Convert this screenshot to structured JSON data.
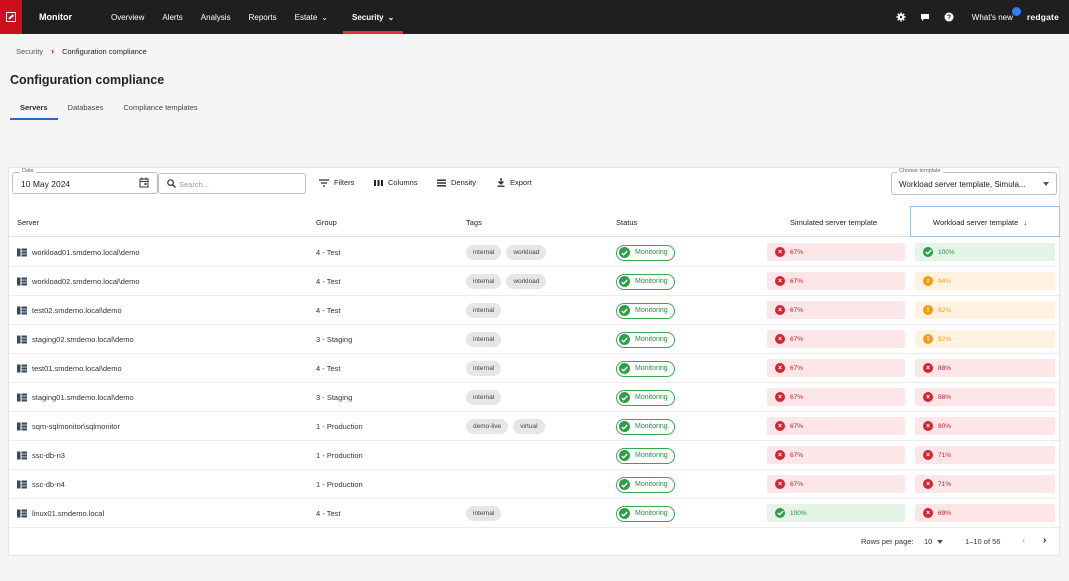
{
  "app": {
    "name": "Monitor",
    "brand": "redgate",
    "whats_new": "What's new"
  },
  "nav": [
    {
      "label": "Overview",
      "has_chevron": false
    },
    {
      "label": "Alerts",
      "has_chevron": false
    },
    {
      "label": "Analysis",
      "has_chevron": false
    },
    {
      "label": "Reports",
      "has_chevron": false
    },
    {
      "label": "Estate",
      "has_chevron": true
    },
    {
      "label": "Security",
      "has_chevron": true,
      "active": true
    }
  ],
  "top_icons": [
    "gear-icon",
    "chat-icon",
    "help-icon"
  ],
  "breadcrumb": {
    "parent": "Security",
    "current": "Configuration compliance"
  },
  "page_title": "Configuration compliance",
  "tabs": [
    "Servers",
    "Databases",
    "Compliance templates"
  ],
  "toolbar": {
    "date_label": "Date",
    "date_value": "10 May 2024",
    "search_placeholder": "Search...",
    "filters": "Filters",
    "columns": "Columns",
    "density": "Density",
    "export": "Export",
    "template_label": "Choose template",
    "template_value": "Workload server template, Simula..."
  },
  "columns": {
    "server": "Server",
    "group": "Group",
    "tags": "Tags",
    "status": "Status",
    "simulated": "Simulated server template",
    "workload": "Workload server template"
  },
  "rows": [
    {
      "server": "workload01.smdemo.local\\demo",
      "group": "4 - Test",
      "tags": [
        "internal",
        "workload"
      ],
      "status": "Monitoring",
      "simulated": "67%",
      "simulated_level": "red",
      "workload": "100%",
      "workload_level": "green"
    },
    {
      "server": "workload02.smdemo.local\\demo",
      "group": "4 - Test",
      "tags": [
        "internal",
        "workload"
      ],
      "status": "Monitoring",
      "simulated": "67%",
      "simulated_level": "red",
      "workload": "94%",
      "workload_level": "orange"
    },
    {
      "server": "test02.smdemo.local\\demo",
      "group": "4 - Test",
      "tags": [
        "internal"
      ],
      "status": "Monitoring",
      "simulated": "67%",
      "simulated_level": "red",
      "workload": "92%",
      "workload_level": "orange"
    },
    {
      "server": "staging02.smdemo.local\\demo",
      "group": "3 - Staging",
      "tags": [
        "internal"
      ],
      "status": "Monitoring",
      "simulated": "67%",
      "simulated_level": "red",
      "workload": "92%",
      "workload_level": "orange"
    },
    {
      "server": "test01.smdemo.local\\demo",
      "group": "4 - Test",
      "tags": [
        "internal"
      ],
      "status": "Monitoring",
      "simulated": "67%",
      "simulated_level": "red",
      "workload": "88%",
      "workload_level": "red"
    },
    {
      "server": "staging01.smdemo.local\\demo",
      "group": "3 - Staging",
      "tags": [
        "internal"
      ],
      "status": "Monitoring",
      "simulated": "67%",
      "simulated_level": "red",
      "workload": "88%",
      "workload_level": "red"
    },
    {
      "server": "sqm-sqlmonitor\\sqlmonitor",
      "group": "1 - Production",
      "tags": [
        "demo-live",
        "virtual"
      ],
      "status": "Monitoring",
      "simulated": "67%",
      "simulated_level": "red",
      "workload": "80%",
      "workload_level": "red"
    },
    {
      "server": "ssc-db-n3",
      "group": "1 - Production",
      "tags": [],
      "status": "Monitoring",
      "simulated": "67%",
      "simulated_level": "red",
      "workload": "71%",
      "workload_level": "red"
    },
    {
      "server": "ssc-db-n4",
      "group": "1 - Production",
      "tags": [],
      "status": "Monitoring",
      "simulated": "67%",
      "simulated_level": "red",
      "workload": "71%",
      "workload_level": "red"
    },
    {
      "server": "linux01.smdemo.local",
      "group": "4 - Test",
      "tags": [
        "internal"
      ],
      "status": "Monitoring",
      "simulated": "100%",
      "simulated_level": "green",
      "workload": "69%",
      "workload_level": "red"
    }
  ],
  "pagination": {
    "rows_per_page_label": "Rows per page:",
    "rows_per_page": "10",
    "range": "1–10 of 56"
  },
  "colors": {
    "accent_red": "#cc0f1b",
    "topbar": "#1f1f1f",
    "tab_active": "#2b66c4",
    "ok_green": "#2e9e48",
    "warn_orange": "#f39c12",
    "fail_red": "#d22633"
  }
}
